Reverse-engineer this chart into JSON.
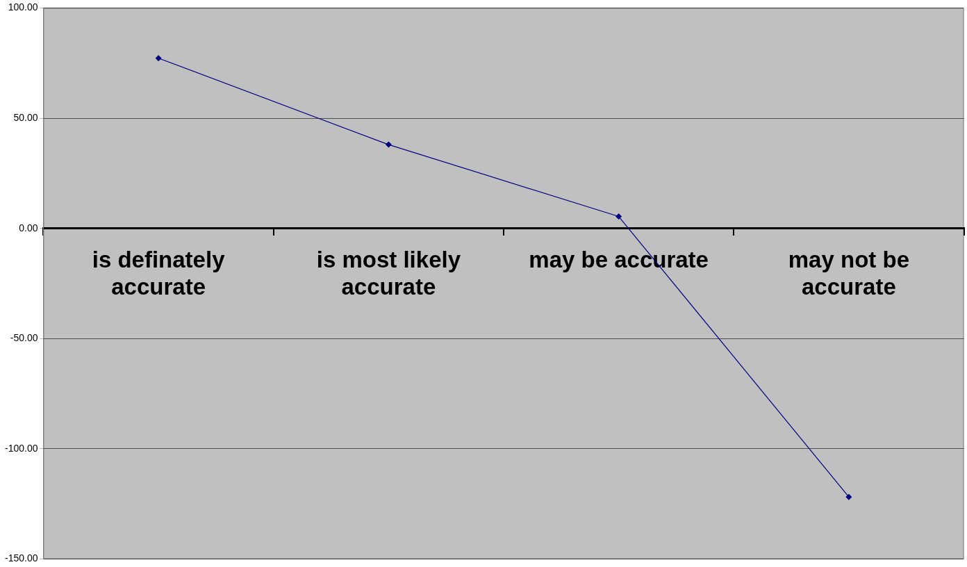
{
  "chart_data": {
    "type": "line",
    "categories": [
      "is definately accurate",
      "is most likely accurate",
      "may be accurate",
      "may not be accurate"
    ],
    "series": [
      {
        "color": "#000080",
        "values": [
          77.2,
          38.0,
          5.4,
          -121.8
        ]
      }
    ],
    "ylim": [
      -150,
      100
    ],
    "yticks": [
      {
        "value": -150,
        "label": "-150.00"
      },
      {
        "value": -100,
        "label": "-100.00"
      },
      {
        "value": -50,
        "label": "-50.00"
      },
      {
        "value": 0,
        "label": "0.00"
      },
      {
        "value": 50,
        "label": "50.00"
      },
      {
        "value": 100,
        "label": "100.00"
      }
    ],
    "grid": "y",
    "legend": false,
    "marker": "diamond",
    "line_style": "solid"
  }
}
